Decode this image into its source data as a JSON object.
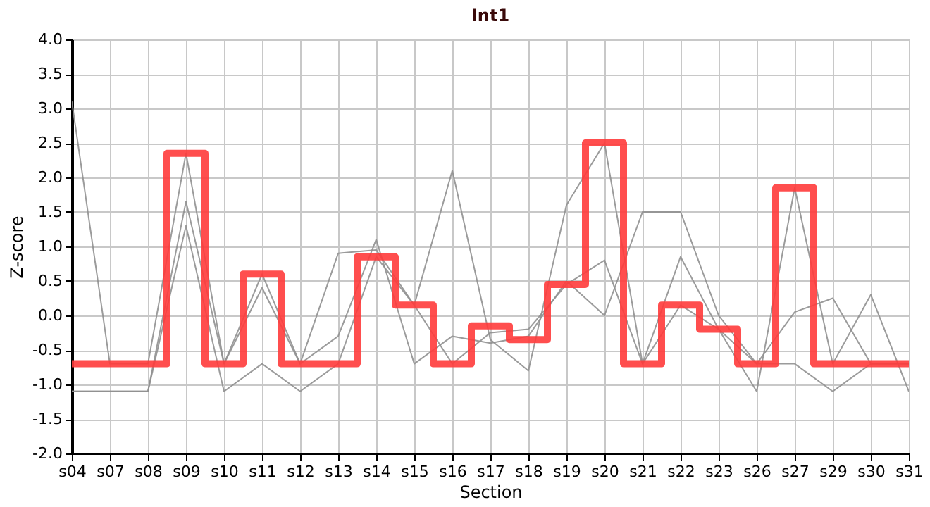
{
  "chart_data": {
    "type": "line",
    "title": "Int1",
    "xlabel": "Section",
    "ylabel": "Z-score",
    "categories": [
      "s04",
      "s07",
      "s08",
      "s09",
      "s10",
      "s11",
      "s12",
      "s13",
      "s14",
      "s15",
      "s16",
      "s17",
      "s18",
      "s19",
      "s20",
      "s21",
      "s22",
      "s23",
      "s26",
      "s27",
      "s29",
      "s30",
      "s31"
    ],
    "series": [
      {
        "color": "#909090",
        "values": [
          3.1,
          -0.7,
          -0.7,
          2.35,
          -0.7,
          0.6,
          -0.7,
          0.9,
          0.95,
          0.15,
          2.1,
          -0.35,
          -0.8,
          1.6,
          2.5,
          -0.7,
          0.85,
          -0.2,
          -1.1,
          1.85,
          -0.7,
          0.3,
          -1.1
        ]
      },
      {
        "color": "#909090",
        "values": [
          -1.1,
          -1.1,
          -1.1,
          1.65,
          -0.7,
          0.4,
          -0.7,
          -0.3,
          1.1,
          -0.7,
          -0.3,
          -0.4,
          -0.3,
          0.5,
          0.0,
          1.5,
          1.5,
          0.0,
          -0.7,
          0.05,
          0.25,
          -0.7,
          -0.7
        ]
      },
      {
        "color": "#909090",
        "values": [
          -1.1,
          -1.1,
          -1.1,
          1.3,
          -1.1,
          -0.7,
          -1.1,
          -0.7,
          0.85,
          0.15,
          -0.7,
          -0.25,
          -0.2,
          0.45,
          0.8,
          -0.7,
          0.15,
          -0.2,
          -0.7,
          -0.7,
          -1.1,
          -0.7,
          -0.7
        ]
      },
      {
        "type": "step",
        "color": "#ff3b3b",
        "values": [
          -0.7,
          -0.7,
          -0.7,
          2.35,
          -0.7,
          0.6,
          -0.7,
          -0.7,
          0.85,
          0.15,
          -0.7,
          -0.15,
          -0.35,
          0.45,
          2.5,
          -0.7,
          0.15,
          -0.2,
          -0.7,
          1.85,
          -0.7,
          -0.7,
          -0.7
        ]
      }
    ],
    "ylim": [
      -2,
      4
    ],
    "yticks": [
      {
        "value": -2,
        "label": "-2.0"
      },
      {
        "value": -1.5,
        "label": "-1.5"
      },
      {
        "value": -1,
        "label": "-1.0"
      },
      {
        "value": -0.5,
        "label": "-0.5"
      },
      {
        "value": 0,
        "label": "0.0"
      },
      {
        "value": 0.5,
        "label": "0.5"
      },
      {
        "value": 1,
        "label": "1.0"
      },
      {
        "value": 1.5,
        "label": "1.5"
      },
      {
        "value": 2,
        "label": "2.0"
      },
      {
        "value": 2.5,
        "label": "2.5"
      },
      {
        "value": 3,
        "label": "3.0"
      },
      {
        "value": 3.5,
        "label": "3.5"
      },
      {
        "value": 4,
        "label": "4.0"
      }
    ],
    "grid": true,
    "marker": "none",
    "line_style": "solid"
  }
}
